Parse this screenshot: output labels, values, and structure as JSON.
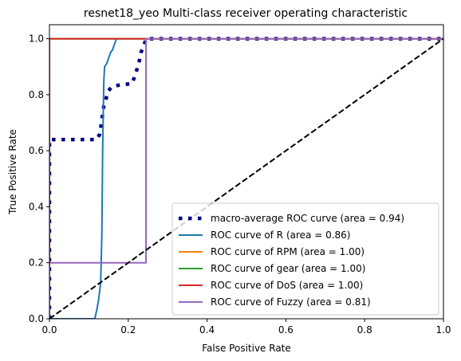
{
  "chart_data": {
    "type": "line",
    "title": "resnet18_yeo Multi-class receiver operating characteristic",
    "xlabel": "False Positive Rate",
    "ylabel": "True Positive Rate",
    "xlim": [
      0.0,
      1.0
    ],
    "ylim": [
      0.0,
      1.05
    ],
    "xticks": [
      0.0,
      0.2,
      0.4,
      0.6,
      0.8,
      1.0
    ],
    "yticks": [
      0.0,
      0.2,
      0.4,
      0.6,
      0.8,
      1.0
    ],
    "xtick_labels": [
      "0.0",
      "0.2",
      "0.4",
      "0.6",
      "0.8",
      "1.0"
    ],
    "ytick_labels": [
      "0.0",
      "0.2",
      "0.4",
      "0.6",
      "0.8",
      "1.0"
    ],
    "grid": false,
    "legend_position": "lower-right",
    "series": [
      {
        "name": "macro-average ROC curve (area = 0.94)",
        "color": "#000080",
        "style": "dotted",
        "x": [
          0.0,
          0.0,
          0.12,
          0.128,
          0.132,
          0.138,
          0.15,
          0.16,
          0.18,
          0.21,
          0.215,
          0.222,
          0.228,
          0.232,
          0.238,
          0.243,
          0.245,
          0.25,
          0.4,
          1.0
        ],
        "y": [
          0.0,
          0.64,
          0.64,
          0.66,
          0.7,
          0.76,
          0.815,
          0.83,
          0.835,
          0.84,
          0.86,
          0.89,
          0.92,
          0.95,
          0.97,
          0.99,
          1.0,
          1.0,
          1.0,
          1.0
        ]
      },
      {
        "name": "ROC curve of R (area = 0.86)",
        "color": "#1f77b4",
        "style": "solid",
        "x": [
          0.0,
          0.115,
          0.12,
          0.125,
          0.13,
          0.133,
          0.135,
          0.138,
          0.14,
          0.145,
          0.15,
          0.155,
          0.16,
          0.165,
          0.17,
          0.25,
          1.0
        ],
        "y": [
          0.0,
          0.0,
          0.03,
          0.07,
          0.13,
          0.3,
          0.6,
          0.85,
          0.9,
          0.91,
          0.93,
          0.95,
          0.96,
          0.98,
          1.0,
          1.0,
          1.0
        ]
      },
      {
        "name": "ROC curve of RPM (area = 1.00)",
        "color": "#ff7f0e",
        "style": "solid",
        "x": [
          0.0,
          0.0,
          1.0
        ],
        "y": [
          0.0,
          1.0,
          1.0
        ]
      },
      {
        "name": "ROC curve of gear (area = 1.00)",
        "color": "#2ca02c",
        "style": "solid",
        "x": [
          0.0,
          0.0,
          1.0
        ],
        "y": [
          0.0,
          1.0,
          1.0
        ]
      },
      {
        "name": "ROC curve of DoS (area = 1.00)",
        "color": "#d62728",
        "style": "solid",
        "x": [
          0.0,
          0.0,
          1.0
        ],
        "y": [
          0.0,
          1.0,
          1.0
        ]
      },
      {
        "name": "ROC curve of Fuzzy (area = 0.81)",
        "color": "#9467bd",
        "style": "solid",
        "x": [
          0.0,
          0.0,
          0.245,
          0.245,
          1.0
        ],
        "y": [
          0.0,
          0.2,
          0.2,
          1.0,
          1.0
        ]
      }
    ],
    "reference_line": {
      "color": "#000000",
      "style": "dashed",
      "x": [
        0.0,
        1.0
      ],
      "y": [
        0.0,
        1.0
      ]
    }
  }
}
